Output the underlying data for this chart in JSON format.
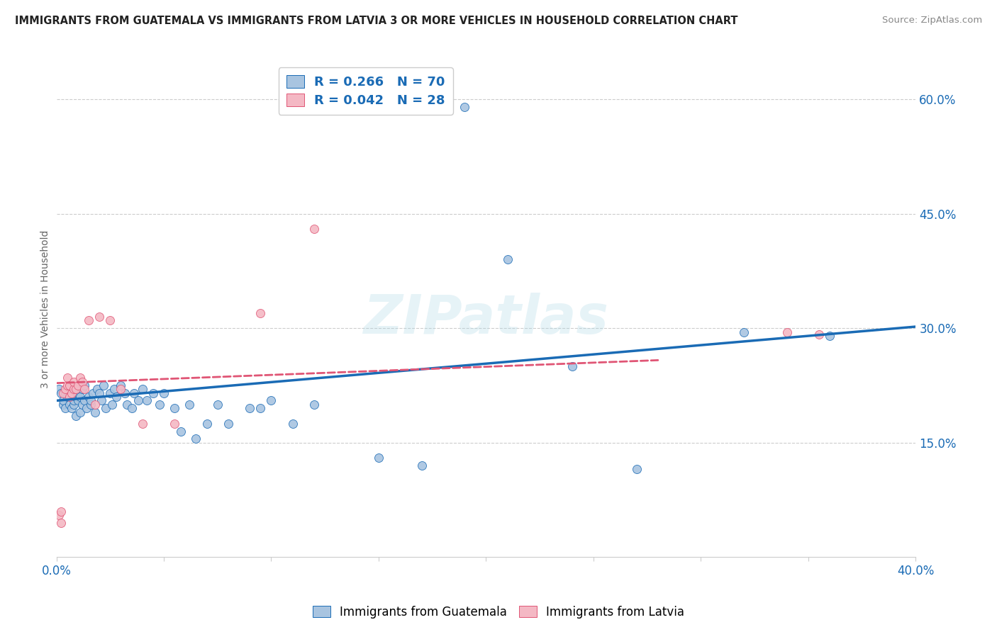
{
  "title": "IMMIGRANTS FROM GUATEMALA VS IMMIGRANTS FROM LATVIA 3 OR MORE VEHICLES IN HOUSEHOLD CORRELATION CHART",
  "source": "Source: ZipAtlas.com",
  "ylabel": "3 or more Vehicles in Household",
  "xlim": [
    0.0,
    0.4
  ],
  "ylim": [
    0.0,
    0.65
  ],
  "xticks": [
    0.0,
    0.05,
    0.1,
    0.15,
    0.2,
    0.25,
    0.3,
    0.35,
    0.4
  ],
  "xticklabels": [
    "0.0%",
    "",
    "",
    "",
    "",
    "",
    "",
    "",
    "40.0%"
  ],
  "yticks_right": [
    0.15,
    0.3,
    0.45,
    0.6
  ],
  "ytick_labels_right": [
    "15.0%",
    "30.0%",
    "45.0%",
    "60.0%"
  ],
  "legend_blue_R": "0.266",
  "legend_blue_N": "70",
  "legend_pink_R": "0.042",
  "legend_pink_N": "28",
  "legend_label_blue": "Immigrants from Guatemala",
  "legend_label_pink": "Immigrants from Latvia",
  "blue_color": "#a8c4e0",
  "pink_color": "#f4b8c4",
  "line_blue_color": "#1a6bb5",
  "line_pink_color": "#e05575",
  "watermark": "ZIPatlas",
  "blue_line_x0": 0.0,
  "blue_line_y0": 0.205,
  "blue_line_x1": 0.4,
  "blue_line_y1": 0.302,
  "pink_line_x0": 0.0,
  "pink_line_y0": 0.228,
  "pink_line_x1": 0.28,
  "pink_line_y1": 0.258,
  "guatemala_x": [
    0.001,
    0.002,
    0.003,
    0.003,
    0.004,
    0.004,
    0.005,
    0.005,
    0.006,
    0.006,
    0.007,
    0.007,
    0.008,
    0.008,
    0.009,
    0.009,
    0.01,
    0.01,
    0.011,
    0.011,
    0.012,
    0.012,
    0.013,
    0.013,
    0.014,
    0.015,
    0.016,
    0.016,
    0.017,
    0.018,
    0.019,
    0.02,
    0.021,
    0.022,
    0.023,
    0.025,
    0.026,
    0.027,
    0.028,
    0.03,
    0.032,
    0.033,
    0.035,
    0.036,
    0.038,
    0.04,
    0.042,
    0.045,
    0.048,
    0.05,
    0.055,
    0.058,
    0.062,
    0.065,
    0.07,
    0.075,
    0.08,
    0.09,
    0.095,
    0.1,
    0.11,
    0.12,
    0.15,
    0.17,
    0.19,
    0.21,
    0.24,
    0.27,
    0.32,
    0.36
  ],
  "guatemala_y": [
    0.22,
    0.215,
    0.2,
    0.205,
    0.215,
    0.195,
    0.21,
    0.22,
    0.2,
    0.215,
    0.195,
    0.225,
    0.2,
    0.205,
    0.21,
    0.185,
    0.215,
    0.205,
    0.21,
    0.19,
    0.22,
    0.2,
    0.205,
    0.225,
    0.195,
    0.21,
    0.2,
    0.205,
    0.215,
    0.19,
    0.22,
    0.215,
    0.205,
    0.225,
    0.195,
    0.215,
    0.2,
    0.22,
    0.21,
    0.225,
    0.215,
    0.2,
    0.195,
    0.215,
    0.205,
    0.22,
    0.205,
    0.215,
    0.2,
    0.215,
    0.195,
    0.165,
    0.2,
    0.155,
    0.175,
    0.2,
    0.175,
    0.195,
    0.195,
    0.205,
    0.175,
    0.2,
    0.13,
    0.12,
    0.59,
    0.39,
    0.25,
    0.115,
    0.295,
    0.29
  ],
  "latvia_x": [
    0.001,
    0.002,
    0.002,
    0.003,
    0.004,
    0.005,
    0.005,
    0.006,
    0.006,
    0.007,
    0.008,
    0.008,
    0.009,
    0.01,
    0.011,
    0.012,
    0.013,
    0.015,
    0.018,
    0.02,
    0.025,
    0.03,
    0.04,
    0.055,
    0.095,
    0.12,
    0.34,
    0.355
  ],
  "latvia_y": [
    0.055,
    0.06,
    0.045,
    0.215,
    0.22,
    0.225,
    0.235,
    0.21,
    0.225,
    0.215,
    0.22,
    0.23,
    0.22,
    0.225,
    0.235,
    0.23,
    0.22,
    0.31,
    0.2,
    0.315,
    0.31,
    0.22,
    0.175,
    0.175,
    0.32,
    0.43,
    0.295,
    0.292
  ]
}
